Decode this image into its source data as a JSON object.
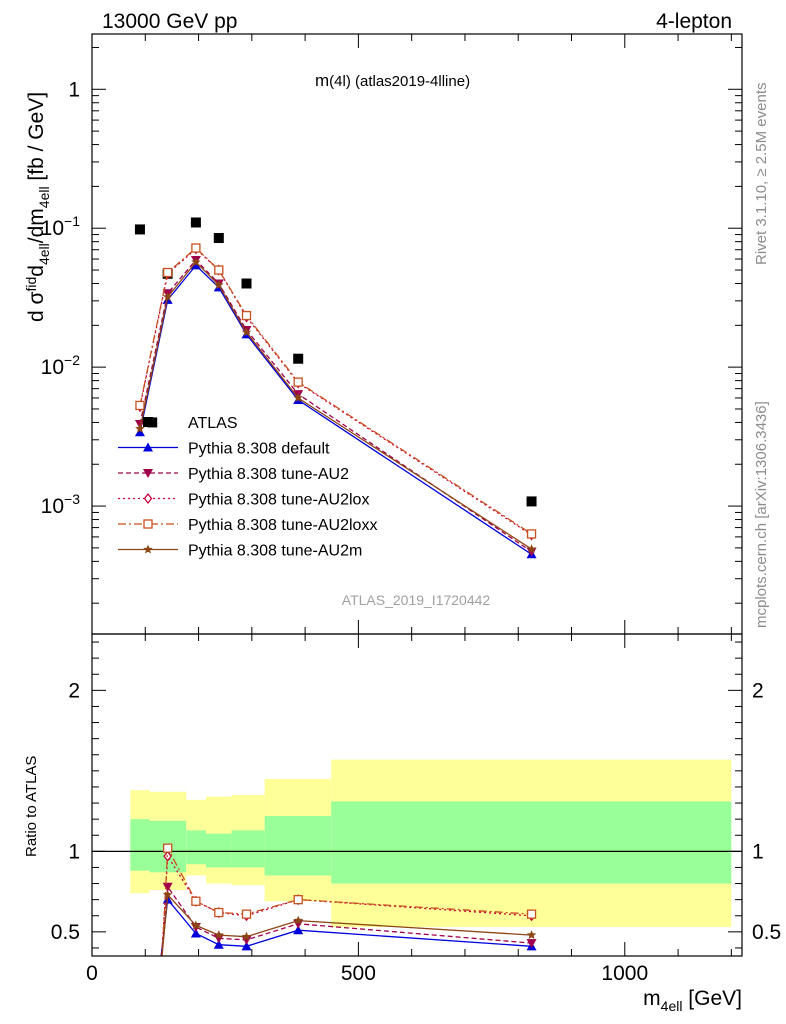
{
  "header": {
    "left": "13000 GeV pp",
    "right": "4-lepton",
    "plot_title": "m(4l) (atlas2019-4lline)",
    "analysis_id": "ATLAS_2019_I1720442",
    "side_rivet": "Rivet 3.1.10, ≥ 2.5M events",
    "side_mcplots": "mcplots.cern.ch [arXiv:1306.3436]"
  },
  "labels": {
    "ylabel_top": "d σ^fid_4ell/dm_4ell [fb / GeV]",
    "ylabel_bottom": "Ratio to ATLAS",
    "xlabel": "m_4ell [GeV]"
  },
  "colors": {
    "data": "#000000",
    "default": "#0000dd",
    "au2": "#a0004b",
    "au2lox": "#c8003c",
    "au2loxx": "#c8501e",
    "au2m": "#8c4614",
    "band_inner": "#99ff99",
    "band_outer": "#ffff99"
  },
  "chart_data": [
    {
      "type": "scatter",
      "panel": "main",
      "xlim": [
        0,
        1220
      ],
      "ylim": [
        0.00012,
        2.5
      ],
      "yscale": "log",
      "y_ticks": [
        "10^-3",
        "10^-2",
        "10^-1",
        "1"
      ],
      "x": [
        90,
        113,
        142,
        195,
        238,
        290,
        387,
        825
      ],
      "series": [
        {
          "name": "ATLAS",
          "key": "data",
          "marker": "square",
          "x": [
            90,
            113,
            142,
            195,
            238,
            290,
            387,
            825
          ],
          "values": [
            0.098,
            0.004,
            0.047,
            0.11,
            0.085,
            0.04,
            0.0115,
            0.00108
          ]
        },
        {
          "name": "Pythia 8.308 default",
          "key": "default",
          "marker": "triangle-up",
          "dash": "",
          "x": [
            90,
            142,
            195,
            238,
            290,
            387,
            825
          ],
          "values": [
            0.0034,
            0.0305,
            0.054,
            0.0375,
            0.0172,
            0.0058,
            0.00045
          ]
        },
        {
          "name": "Pythia 8.308 tune-AU2",
          "key": "au2",
          "marker": "triangle-down",
          "dash": "5,3",
          "x": [
            90,
            142,
            195,
            238,
            290,
            387,
            825
          ],
          "values": [
            0.0039,
            0.034,
            0.059,
            0.04,
            0.0185,
            0.0064,
            0.00047
          ]
        },
        {
          "name": "Pythia 8.308 tune-AU2lox",
          "key": "au2lox",
          "marker": "diamond",
          "dash": "2,3",
          "x": [
            90,
            142,
            195,
            238,
            290,
            387,
            825
          ],
          "values": [
            0.0052,
            0.047,
            0.071,
            0.05,
            0.023,
            0.0077,
            0.00062
          ]
        },
        {
          "name": "Pythia 8.308 tune-AU2loxx",
          "key": "au2loxx",
          "marker": "square-open",
          "dash": "8,3,2,3",
          "x": [
            90,
            142,
            195,
            238,
            290,
            387,
            825
          ],
          "values": [
            0.0053,
            0.048,
            0.072,
            0.05,
            0.0235,
            0.0078,
            0.00063
          ]
        },
        {
          "name": "Pythia 8.308 tune-AU2m",
          "key": "au2m",
          "marker": "star",
          "dash": "",
          "x": [
            90,
            142,
            195,
            238,
            290,
            387,
            825
          ],
          "values": [
            0.0036,
            0.032,
            0.057,
            0.039,
            0.0178,
            0.006,
            0.00049
          ]
        }
      ]
    },
    {
      "type": "line",
      "panel": "ratio",
      "xlim": [
        0,
        1220
      ],
      "ylim": [
        0.35,
        2.35
      ],
      "x_ticks": [
        0,
        500,
        1000
      ],
      "y_ticks": [
        0.5,
        1,
        2
      ],
      "ylabel": "Ratio to ATLAS",
      "bands": [
        {
          "x0": 72,
          "x1": 108,
          "inner": [
            0.88,
            1.2
          ],
          "outer": [
            0.74,
            1.38
          ]
        },
        {
          "x0": 108,
          "x1": 177,
          "inner": [
            0.87,
            1.19
          ],
          "outer": [
            0.76,
            1.37
          ]
        },
        {
          "x0": 177,
          "x1": 214,
          "inner": [
            0.92,
            1.13
          ],
          "outer": [
            0.85,
            1.32
          ]
        },
        {
          "x0": 214,
          "x1": 262,
          "inner": [
            0.9,
            1.11
          ],
          "outer": [
            0.8,
            1.34
          ]
        },
        {
          "x0": 262,
          "x1": 324,
          "inner": [
            0.9,
            1.13
          ],
          "outer": [
            0.79,
            1.35
          ]
        },
        {
          "x0": 324,
          "x1": 449,
          "inner": [
            0.85,
            1.22
          ],
          "outer": [
            0.69,
            1.45
          ]
        },
        {
          "x0": 449,
          "x1": 1200,
          "inner": [
            0.8,
            1.31
          ],
          "outer": [
            0.53,
            1.57
          ]
        }
      ],
      "series": [
        {
          "name": "Pythia 8.308 default",
          "key": "default",
          "marker": "triangle-up",
          "dash": "",
          "x": [
            128,
            142,
            195,
            238,
            290,
            387,
            825
          ],
          "values": [
            0.3,
            0.7,
            0.49,
            0.42,
            0.41,
            0.51,
            0.41
          ]
        },
        {
          "name": "Pythia 8.308 tune-AU2",
          "key": "au2",
          "marker": "triangle-down",
          "dash": "5,3",
          "x": [
            129,
            142,
            195,
            238,
            290,
            387,
            825
          ],
          "values": [
            0.3,
            0.78,
            0.53,
            0.46,
            0.45,
            0.55,
            0.43
          ]
        },
        {
          "name": "Pythia 8.308 tune-AU2lox",
          "key": "au2lox",
          "marker": "diamond",
          "dash": "2,3",
          "x": [
            130,
            142,
            195,
            238,
            290,
            387,
            825
          ],
          "values": [
            0.3,
            0.97,
            0.69,
            0.62,
            0.6,
            0.7,
            0.6
          ]
        },
        {
          "name": "Pythia 8.308 tune-AU2loxx",
          "key": "au2loxx",
          "marker": "square-open",
          "dash": "8,3,2,3",
          "x": [
            131,
            142,
            195,
            238,
            290,
            387,
            825
          ],
          "values": [
            0.3,
            1.02,
            0.69,
            0.62,
            0.61,
            0.7,
            0.61
          ]
        },
        {
          "name": "Pythia 8.308 tune-AU2m",
          "key": "au2m",
          "marker": "star",
          "dash": "",
          "x": [
            130,
            142,
            195,
            238,
            290,
            387,
            825
          ],
          "values": [
            0.3,
            0.73,
            0.54,
            0.48,
            0.47,
            0.57,
            0.48
          ]
        }
      ]
    }
  ]
}
